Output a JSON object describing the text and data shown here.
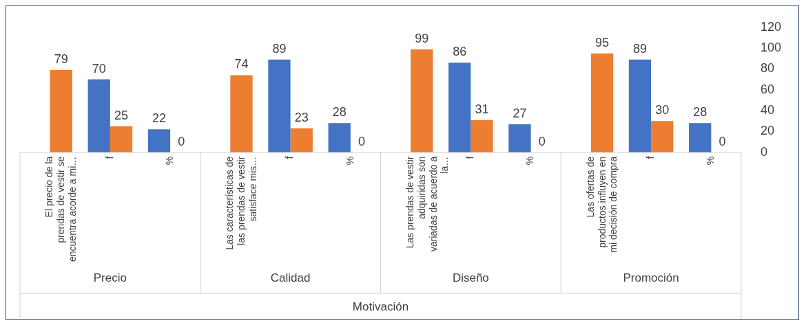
{
  "chart_data": {
    "type": "bar",
    "xlabel": "Motivación",
    "categories": [
      "El precio de la prendas de vestir se encuentra acorde a mi…",
      "f",
      "%",
      "Las características de las prendas de vestir satisface mis…",
      "f",
      "%",
      "Las prendas de vestir adquiridas son variadas de acuerdo a la…",
      "f",
      "%",
      "Las ofertas de productos influyen en mi decisión de compra",
      "f",
      "%"
    ],
    "annotations": [
      "Precio",
      "Calidad",
      "Diseño",
      "Promoción"
    ],
    "series": [
      {
        "color": "#4472c4",
        "values": [
          null,
          70,
          22,
          null,
          89,
          28,
          null,
          86,
          27,
          null,
          89,
          28
        ]
      },
      {
        "color": "#ed7d31",
        "values": [
          79,
          25,
          0,
          74,
          23,
          0,
          99,
          31,
          0,
          95,
          30,
          0
        ]
      }
    ],
    "ylim": [
      0,
      120
    ],
    "yticks": [
      0,
      20,
      40,
      60,
      80,
      100,
      120
    ],
    "data_labels": true,
    "legend": false,
    "grid": false
  }
}
